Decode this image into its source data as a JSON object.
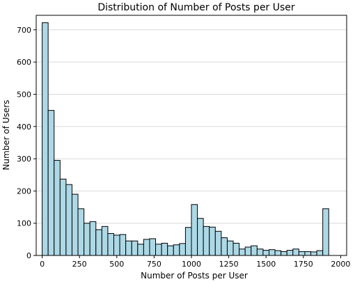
{
  "chart_data": {
    "type": "bar",
    "title": "Distribution of Number of Posts per User",
    "xlabel": "Number of Posts per User",
    "ylabel": "Number of Users",
    "xlim": [
      -40,
      2040
    ],
    "ylim": [
      0,
      745
    ],
    "xticks": [
      0,
      250,
      500,
      750,
      1000,
      1250,
      1500,
      1750,
      2000
    ],
    "yticks": [
      0,
      100,
      200,
      300,
      400,
      500,
      600,
      700
    ],
    "grid": "y",
    "bin_start": 0,
    "bin_width": 40,
    "values": [
      722,
      450,
      295,
      237,
      220,
      190,
      145,
      100,
      105,
      80,
      90,
      68,
      63,
      65,
      45,
      45,
      35,
      50,
      52,
      35,
      38,
      30,
      33,
      37,
      87,
      158,
      115,
      90,
      88,
      75,
      55,
      45,
      38,
      20,
      26,
      30,
      20,
      16,
      18,
      15,
      12,
      16,
      20,
      12,
      12,
      11,
      15,
      145
    ],
    "colors": {
      "bar_fill": "#add8e6",
      "bar_edge": "#000000",
      "grid": "#d9d9d9"
    }
  }
}
